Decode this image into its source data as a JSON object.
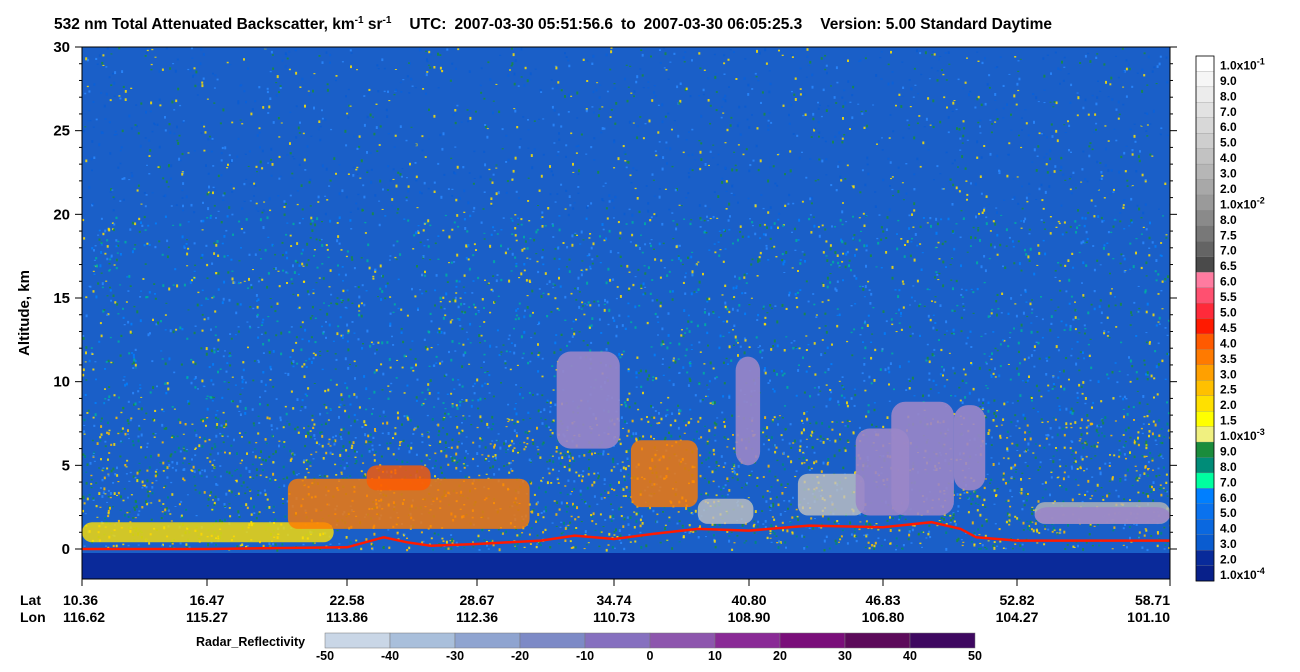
{
  "chart_data": {
    "type": "heatmap",
    "title": {
      "main": "532 nm Total Attenuated Backscatter, km",
      "unit_sup1": "-1",
      "unit_mid": " sr",
      "unit_sup2": "-1",
      "utc_label": "UTC:",
      "utc_start": "2007-03-30 05:51:56.6",
      "utc_to": "to",
      "utc_end": "2007-03-30 06:05:25.3",
      "version": "Version: 5.00  Standard  Daytime"
    },
    "ylabel": "Altitude, km",
    "ylim": [
      -1.5,
      30
    ],
    "yticks": [
      "30",
      "25",
      "20",
      "15",
      "10",
      "5",
      "0"
    ],
    "xaxis": {
      "lat_label": "Lat",
      "lon_label": "Lon",
      "lat": [
        "10.36",
        "16.47",
        "22.58",
        "28.67",
        "34.74",
        "40.80",
        "46.83",
        "52.82",
        "58.71"
      ],
      "lon": [
        "116.62",
        "115.27",
        "113.86",
        "112.36",
        "110.73",
        "108.90",
        "106.80",
        "104.27",
        "101.10"
      ]
    },
    "colorbar": {
      "labels": [
        {
          "m": "1.0x10",
          "e": "-1"
        },
        {
          "m": "9.0"
        },
        {
          "m": "8.0"
        },
        {
          "m": "7.0"
        },
        {
          "m": "6.0"
        },
        {
          "m": "5.0"
        },
        {
          "m": "4.0"
        },
        {
          "m": "3.0"
        },
        {
          "m": "2.0"
        },
        {
          "m": "1.0x10",
          "e": "-2"
        },
        {
          "m": "8.0"
        },
        {
          "m": "7.5"
        },
        {
          "m": "7.0"
        },
        {
          "m": "6.5"
        },
        {
          "m": "6.0"
        },
        {
          "m": "5.5"
        },
        {
          "m": "5.0"
        },
        {
          "m": "4.5"
        },
        {
          "m": "4.0"
        },
        {
          "m": "3.5"
        },
        {
          "m": "3.0"
        },
        {
          "m": "2.5"
        },
        {
          "m": "2.0"
        },
        {
          "m": "1.5"
        },
        {
          "m": "1.0x10",
          "e": "-3"
        },
        {
          "m": "9.0"
        },
        {
          "m": "8.0"
        },
        {
          "m": "7.0"
        },
        {
          "m": "6.0"
        },
        {
          "m": "5.0"
        },
        {
          "m": "4.0"
        },
        {
          "m": "3.0"
        },
        {
          "m": "2.0"
        },
        {
          "m": "1.0x10",
          "e": "-4"
        }
      ],
      "colors": [
        "#ffffff",
        "#f6f6f6",
        "#ececec",
        "#e2e2e2",
        "#d8d8d8",
        "#cecece",
        "#c2c2c2",
        "#b6b6b6",
        "#a8a8a8",
        "#9a9a9a",
        "#8a8a8a",
        "#787878",
        "#646464",
        "#4a4a4a",
        "#ff7ba0",
        "#ff5070",
        "#ff2a3a",
        "#ff1a00",
        "#ff5a00",
        "#ff7a00",
        "#ffa000",
        "#ffc000",
        "#ffe000",
        "#ffff00",
        "#f0f080",
        "#1a8c3c",
        "#008c78",
        "#00ffa0",
        "#007fff",
        "#0a72ee",
        "#0a68e0",
        "#0a5cd0",
        "#082a9a",
        "#08208a"
      ]
    },
    "radar": {
      "label": "Radar_Reflectivity",
      "ticks": [
        "-50",
        "-40",
        "-30",
        "-20",
        "-10",
        "0",
        "10",
        "20",
        "30",
        "40",
        "50"
      ],
      "colors": [
        "#c9d6e6",
        "#a9bfdb",
        "#8fa4d0",
        "#7d8ac6",
        "#8670bf",
        "#8d56ad",
        "#8a2a96",
        "#7a0e7a",
        "#5c0a5a",
        "#3e0860"
      ]
    },
    "features": {
      "surface_km": [
        [
          10.36,
          0.0
        ],
        [
          16.47,
          0.0
        ],
        [
          22.58,
          0.1
        ],
        [
          24.3,
          0.7
        ],
        [
          25.4,
          0.4
        ],
        [
          26.5,
          0.2
        ],
        [
          28.67,
          0.3
        ],
        [
          31.5,
          0.5
        ],
        [
          33.0,
          0.8
        ],
        [
          34.74,
          0.6
        ],
        [
          36.5,
          0.9
        ],
        [
          38.5,
          1.2
        ],
        [
          40.8,
          1.1
        ],
        [
          43.5,
          1.4
        ],
        [
          46.83,
          1.3
        ],
        [
          49.0,
          1.6
        ],
        [
          50.3,
          1.2
        ],
        [
          51.0,
          0.7
        ],
        [
          52.82,
          0.5
        ],
        [
          55.5,
          0.5
        ],
        [
          58.71,
          0.5
        ]
      ],
      "cloud_layers": [
        {
          "lat": [
            10.36,
            22.0
          ],
          "base_km": 0.4,
          "top_km": 1.6,
          "color": "#ffe000"
        },
        {
          "lat": [
            20.0,
            31.0
          ],
          "base_km": 1.2,
          "top_km": 4.2,
          "color": "#ff7a00"
        },
        {
          "lat": [
            23.5,
            26.5
          ],
          "base_km": 3.5,
          "top_km": 5.0,
          "color": "#ff5a00"
        },
        {
          "lat": [
            35.5,
            38.5
          ],
          "base_km": 2.5,
          "top_km": 6.5,
          "color": "#ff7a00"
        },
        {
          "lat": [
            38.5,
            41.0
          ],
          "base_km": 1.5,
          "top_km": 3.0,
          "color": "#c2c2c2"
        },
        {
          "lat": [
            43.0,
            46.0
          ],
          "base_km": 2.0,
          "top_km": 4.5,
          "color": "#c2c2c2"
        },
        {
          "lat": [
            53.5,
            58.71
          ],
          "base_km": 1.5,
          "top_km": 2.8,
          "color": "#b6b6b6"
        }
      ],
      "radar_cells": [
        {
          "lat": [
            32.2,
            35.0
          ],
          "base_km": 6.0,
          "top_km": 11.8
        },
        {
          "lat": [
            40.2,
            41.3
          ],
          "base_km": 5.0,
          "top_km": 11.5
        },
        {
          "lat": [
            45.6,
            48.0
          ],
          "base_km": 2.0,
          "top_km": 7.2
        },
        {
          "lat": [
            47.2,
            50.0
          ],
          "base_km": 2.0,
          "top_km": 8.8
        },
        {
          "lat": [
            50.0,
            51.4
          ],
          "base_km": 3.5,
          "top_km": 8.6
        },
        {
          "lat": [
            53.5,
            58.71
          ],
          "base_km": 1.5,
          "top_km": 2.5
        }
      ]
    }
  }
}
